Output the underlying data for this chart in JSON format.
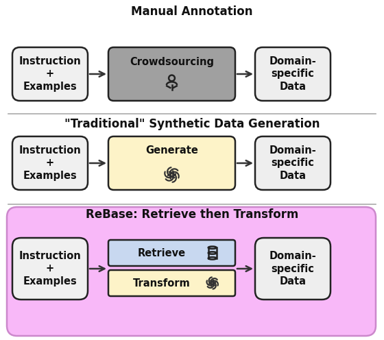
{
  "title1": "Manual Annotation",
  "title2": "\"Traditional\" Synthetic Data Generation",
  "title3": "ReBase: Retrieve then Transform",
  "box1_text": "Instruction\n+\nExamples",
  "box2_text": "Crowdsourcing",
  "box3_text": "Domain-\nspecific\nData",
  "box4_text": "Instruction\n+\nExamples",
  "box5_text": "Generate",
  "box6_text": "Domain-\nspecific\nData",
  "box7_text": "Instruction\n+\nExamples",
  "box8_text": "Retrieve",
  "box9_text": "Transform",
  "box10_text": "Domain-\nspecific\nData",
  "bg_color": "#ffffff",
  "section3_bg": "#f8b8f8",
  "section3_edge": "#cc88cc",
  "crowdsourcing_bg": "#a0a0a0",
  "generate_bg": "#fdf3c8",
  "retrieve_bg": "#c8d8f0",
  "transform_bg": "#fdf3c8",
  "instruction_bg": "#f0f0f0",
  "domain_bg": "#eeeeee",
  "box_edge_color": "#222222",
  "sep_color": "#aaaaaa",
  "arrow_color": "#333333",
  "title_fontsize": 12,
  "label_fontsize": 10.5
}
